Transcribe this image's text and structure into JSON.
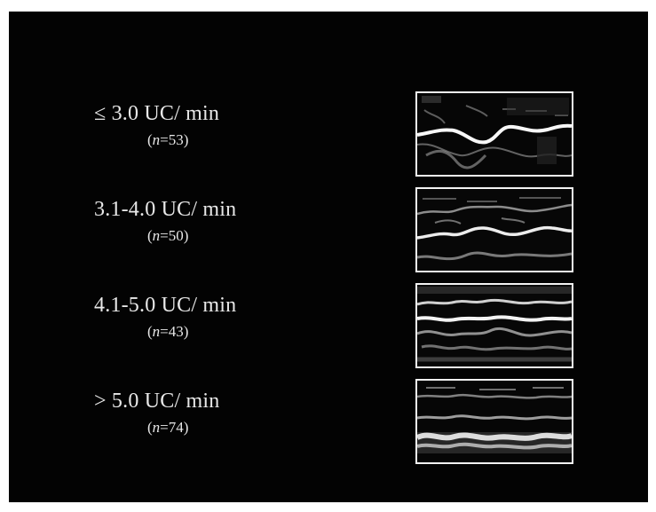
{
  "rows": [
    {
      "range": "≤ 3.0 UC/ min",
      "n_prefix": "(",
      "n_symbol": "n",
      "n_value": "=53)"
    },
    {
      "range": "3.1-4.0 UC/ min",
      "n_prefix": "(",
      "n_symbol": "n",
      "n_value": "=50)"
    },
    {
      "range": "4.1-5.0 UC/ min",
      "n_prefix": "(",
      "n_symbol": "n",
      "n_value": "=43)"
    },
    {
      "range": "> 5.0 UC/ min",
      "n_prefix": "(",
      "n_symbol": "n",
      "n_value": "=74)"
    }
  ]
}
